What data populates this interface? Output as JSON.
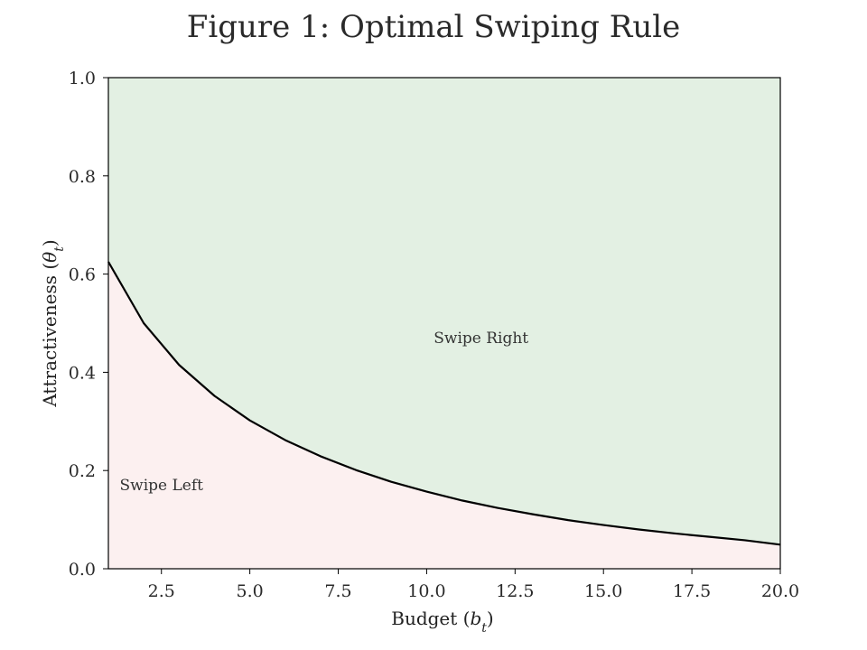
{
  "chart_data": {
    "type": "area",
    "title": "Figure 1: Optimal Swiping Rule",
    "xlabel": {
      "prefix": "Budget (",
      "symbol": "b",
      "subscript": "t",
      "suffix": ")"
    },
    "ylabel": {
      "prefix": "Attractiveness (",
      "symbol": "θ",
      "subscript": "t",
      "suffix": ")"
    },
    "xlim": [
      1,
      20
    ],
    "ylim": [
      0,
      1
    ],
    "xticks": [
      2.5,
      5.0,
      7.5,
      10.0,
      12.5,
      15.0,
      17.5,
      20.0
    ],
    "xtick_labels": [
      "2.5",
      "5.0",
      "7.5",
      "10.0",
      "12.5",
      "15.0",
      "17.5",
      "20.0"
    ],
    "yticks": [
      0.0,
      0.2,
      0.4,
      0.6,
      0.8,
      1.0
    ],
    "ytick_labels": [
      "0.0",
      "0.2",
      "0.4",
      "0.6",
      "0.8",
      "1.0"
    ],
    "grid": false,
    "threshold_curve": {
      "x": [
        1,
        2,
        3,
        4,
        5,
        6,
        7,
        8,
        9,
        10,
        11,
        12,
        13,
        14,
        15,
        16,
        17,
        18,
        19,
        20
      ],
      "y": [
        0.625,
        0.5,
        0.415,
        0.352,
        0.302,
        0.262,
        0.229,
        0.201,
        0.177,
        0.157,
        0.139,
        0.124,
        0.111,
        0.099,
        0.089,
        0.08,
        0.072,
        0.065,
        0.058,
        0.049
      ]
    },
    "regions": [
      {
        "label": "Swipe Right",
        "position": "above",
        "color": "#e3f0e3",
        "label_x": 10.2,
        "label_y": 0.46
      },
      {
        "label": "Swipe Left",
        "position": "below",
        "color": "#fcf0f0",
        "label_x": 2.5,
        "label_y": 0.16
      }
    ],
    "line_color": "#000000"
  }
}
